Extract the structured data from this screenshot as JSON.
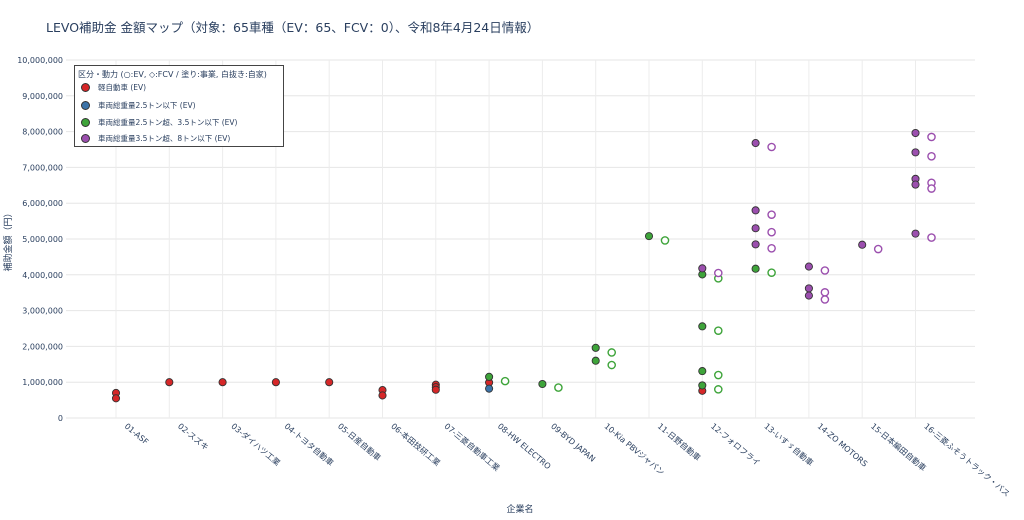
{
  "title": "LEVO補助金 金額マップ（対象：65車種（EV：65、FCV：0）、令和8年4月24日情報）",
  "chart_data": {
    "type": "scatter",
    "xlabel": "企業名",
    "ylabel": "補助金額（円）",
    "ylim": [
      0,
      10000000
    ],
    "yticks": [
      0,
      1000000,
      2000000,
      3000000,
      4000000,
      5000000,
      6000000,
      7000000,
      8000000,
      9000000,
      10000000
    ],
    "ytick_labels": [
      "0",
      "1,000,000",
      "2,000,000",
      "3,000,000",
      "4,000,000",
      "5,000,000",
      "6,000,000",
      "7,000,000",
      "8,000,000",
      "9,000,000",
      "10,000,000"
    ],
    "categories": [
      "01-ASF",
      "02-スズキ",
      "03-ダイハツ工業",
      "04-トヨタ自動車",
      "05-日産自動車",
      "06-本田技研工業",
      "07-三菱自動車工業",
      "08-HW ELECTRO",
      "09-BYD JAPAN",
      "10-Kia PBVジャパン",
      "11-日野自動車",
      "12-フォロフライ",
      "13-いすゞ自動車",
      "14-ZO MOTORS",
      "15-日本編田自動車",
      "16-三菱ふそうトラック・バス"
    ],
    "grid": true,
    "legend_position": "top-left",
    "legend_title": "区分・動力 (○:EV, ◇:FCV / 塗り:事業, 白抜き:自家)",
    "series": [
      {
        "name": "軽自動車 (EV)",
        "color": "#d62728",
        "filled": [
          {
            "x": "01-ASF",
            "y": 700000
          },
          {
            "x": "01-ASF",
            "y": 550000
          },
          {
            "x": "02-スズキ",
            "y": 1000000
          },
          {
            "x": "03-ダイハツ工業",
            "y": 1000000
          },
          {
            "x": "04-トヨタ自動車",
            "y": 1000000
          },
          {
            "x": "05-日産自動車",
            "y": 1000000
          },
          {
            "x": "06-本田技研工業",
            "y": 780000
          },
          {
            "x": "06-本田技研工業",
            "y": 630000
          },
          {
            "x": "07-三菱自動車工業",
            "y": 930000
          },
          {
            "x": "07-三菱自動車工業",
            "y": 860000
          },
          {
            "x": "07-三菱自動車工業",
            "y": 790000
          },
          {
            "x": "08-HW ELECTRO",
            "y": 990000
          },
          {
            "x": "12-フォロフライ",
            "y": 760000
          }
        ],
        "hollow": []
      },
      {
        "name": "車両総重量2.5トン以下 (EV)",
        "color": "#3b73a8",
        "filled": [
          {
            "x": "08-HW ELECTRO",
            "y": 820000
          }
        ],
        "hollow": []
      },
      {
        "name": "車両総重量2.5トン超、3.5トン以下 (EV)",
        "color": "#3ea43a",
        "filled": [
          {
            "x": "08-HW ELECTRO",
            "y": 1150000
          },
          {
            "x": "09-BYD JAPAN",
            "y": 950000
          },
          {
            "x": "10-Kia PBVジャパン",
            "y": 1960000
          },
          {
            "x": "10-Kia PBVジャパン",
            "y": 1600000
          },
          {
            "x": "11-日野自動車",
            "y": 5080000
          },
          {
            "x": "12-フォロフライ",
            "y": 4010000
          },
          {
            "x": "12-フォロフライ",
            "y": 2560000
          },
          {
            "x": "12-フォロフライ",
            "y": 1310000
          },
          {
            "x": "12-フォロフライ",
            "y": 910000
          },
          {
            "x": "13-いすゞ自動車",
            "y": 4170000
          }
        ],
        "hollow": [
          {
            "x": "08-HW ELECTRO",
            "y": 1030000
          },
          {
            "x": "09-BYD JAPAN",
            "y": 850000
          },
          {
            "x": "10-Kia PBVジャパン",
            "y": 1830000
          },
          {
            "x": "10-Kia PBVジャパン",
            "y": 1480000
          },
          {
            "x": "11-日野自動車",
            "y": 4960000
          },
          {
            "x": "12-フォロフライ",
            "y": 3900000
          },
          {
            "x": "12-フォロフライ",
            "y": 2440000
          },
          {
            "x": "12-フォロフライ",
            "y": 1200000
          },
          {
            "x": "12-フォロフライ",
            "y": 800000
          },
          {
            "x": "13-いすゞ自動車",
            "y": 4060000
          }
        ]
      },
      {
        "name": "車両総重量3.5トン超、8トン以下 (EV)",
        "color": "#9b4fae",
        "filled": [
          {
            "x": "12-フォロフライ",
            "y": 4180000
          },
          {
            "x": "13-いすゞ自動車",
            "y": 7680000
          },
          {
            "x": "13-いすゞ自動車",
            "y": 5800000
          },
          {
            "x": "13-いすゞ自動車",
            "y": 5300000
          },
          {
            "x": "13-いすゞ自動車",
            "y": 4850000
          },
          {
            "x": "14-ZO MOTORS",
            "y": 4230000
          },
          {
            "x": "14-ZO MOTORS",
            "y": 3620000
          },
          {
            "x": "14-ZO MOTORS",
            "y": 3420000
          },
          {
            "x": "15-日本編田自動車",
            "y": 4840000
          },
          {
            "x": "16-三菱ふそうトラック・バス",
            "y": 7960000
          },
          {
            "x": "16-三菱ふそうトラック・バス",
            "y": 7420000
          },
          {
            "x": "16-三菱ふそうトラック・バス",
            "y": 6680000
          },
          {
            "x": "16-三菱ふそうトラック・バス",
            "y": 6520000
          },
          {
            "x": "16-三菱ふそうトラック・バス",
            "y": 5150000
          }
        ],
        "hollow": [
          {
            "x": "12-フォロフライ",
            "y": 4050000
          },
          {
            "x": "13-いすゞ自動車",
            "y": 7570000
          },
          {
            "x": "13-いすゞ自動車",
            "y": 5680000
          },
          {
            "x": "13-いすゞ自動車",
            "y": 5190000
          },
          {
            "x": "13-いすゞ自動車",
            "y": 4740000
          },
          {
            "x": "14-ZO MOTORS",
            "y": 4120000
          },
          {
            "x": "14-ZO MOTORS",
            "y": 3510000
          },
          {
            "x": "14-ZO MOTORS",
            "y": 3310000
          },
          {
            "x": "15-日本編田自動車",
            "y": 4720000
          },
          {
            "x": "16-三菱ふそうトラック・バス",
            "y": 7850000
          },
          {
            "x": "16-三菱ふそうトラック・バス",
            "y": 7310000
          },
          {
            "x": "16-三菱ふそうトラック・バス",
            "y": 6570000
          },
          {
            "x": "16-三菱ふそうトラック・バス",
            "y": 6410000
          },
          {
            "x": "16-三菱ふそうトラック・バス",
            "y": 5040000
          }
        ]
      }
    ]
  }
}
